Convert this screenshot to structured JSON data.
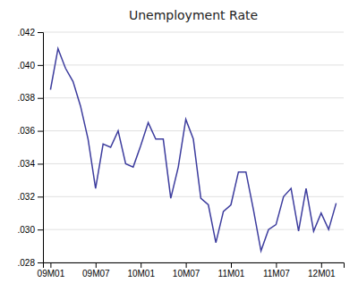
{
  "chart_data": {
    "type": "line",
    "title": "Unemployment Rate",
    "categories": [
      "09M01",
      null,
      null,
      null,
      null,
      null,
      "09M07",
      null,
      null,
      null,
      null,
      null,
      "10M01",
      null,
      null,
      null,
      null,
      null,
      "10M07",
      null,
      null,
      null,
      null,
      null,
      "11M01",
      null,
      null,
      null,
      null,
      null,
      "11M07",
      null,
      null,
      null,
      null,
      null,
      "12M01",
      null,
      null
    ],
    "values": [
      0.0385,
      0.041,
      0.0398,
      0.039,
      0.0375,
      0.0355,
      0.0325,
      0.0352,
      0.035,
      0.036,
      0.034,
      0.0338,
      0.0351,
      0.0365,
      0.0355,
      0.0355,
      0.0319,
      0.0338,
      0.0367,
      0.0355,
      0.0319,
      0.0315,
      0.0292,
      0.0311,
      0.0315,
      0.0335,
      0.0335,
      0.0312,
      0.0287,
      0.03,
      0.0303,
      0.032,
      0.0325,
      0.0299,
      0.0325,
      0.0299,
      0.031,
      0.03,
      0.0316
    ],
    "color": "#3d3d9e",
    "ylim": [
      0.028,
      0.042
    ],
    "yticks": [
      {
        "value": 0.028,
        "label": ".028"
      },
      {
        "value": 0.03,
        "label": ".030"
      },
      {
        "value": 0.032,
        "label": ".032"
      },
      {
        "value": 0.034,
        "label": ".034"
      },
      {
        "value": 0.036,
        "label": ".036"
      },
      {
        "value": 0.038,
        "label": ".038"
      },
      {
        "value": 0.04,
        "label": ".040"
      },
      {
        "value": 0.042,
        "label": ".042"
      }
    ],
    "grid": true
  }
}
